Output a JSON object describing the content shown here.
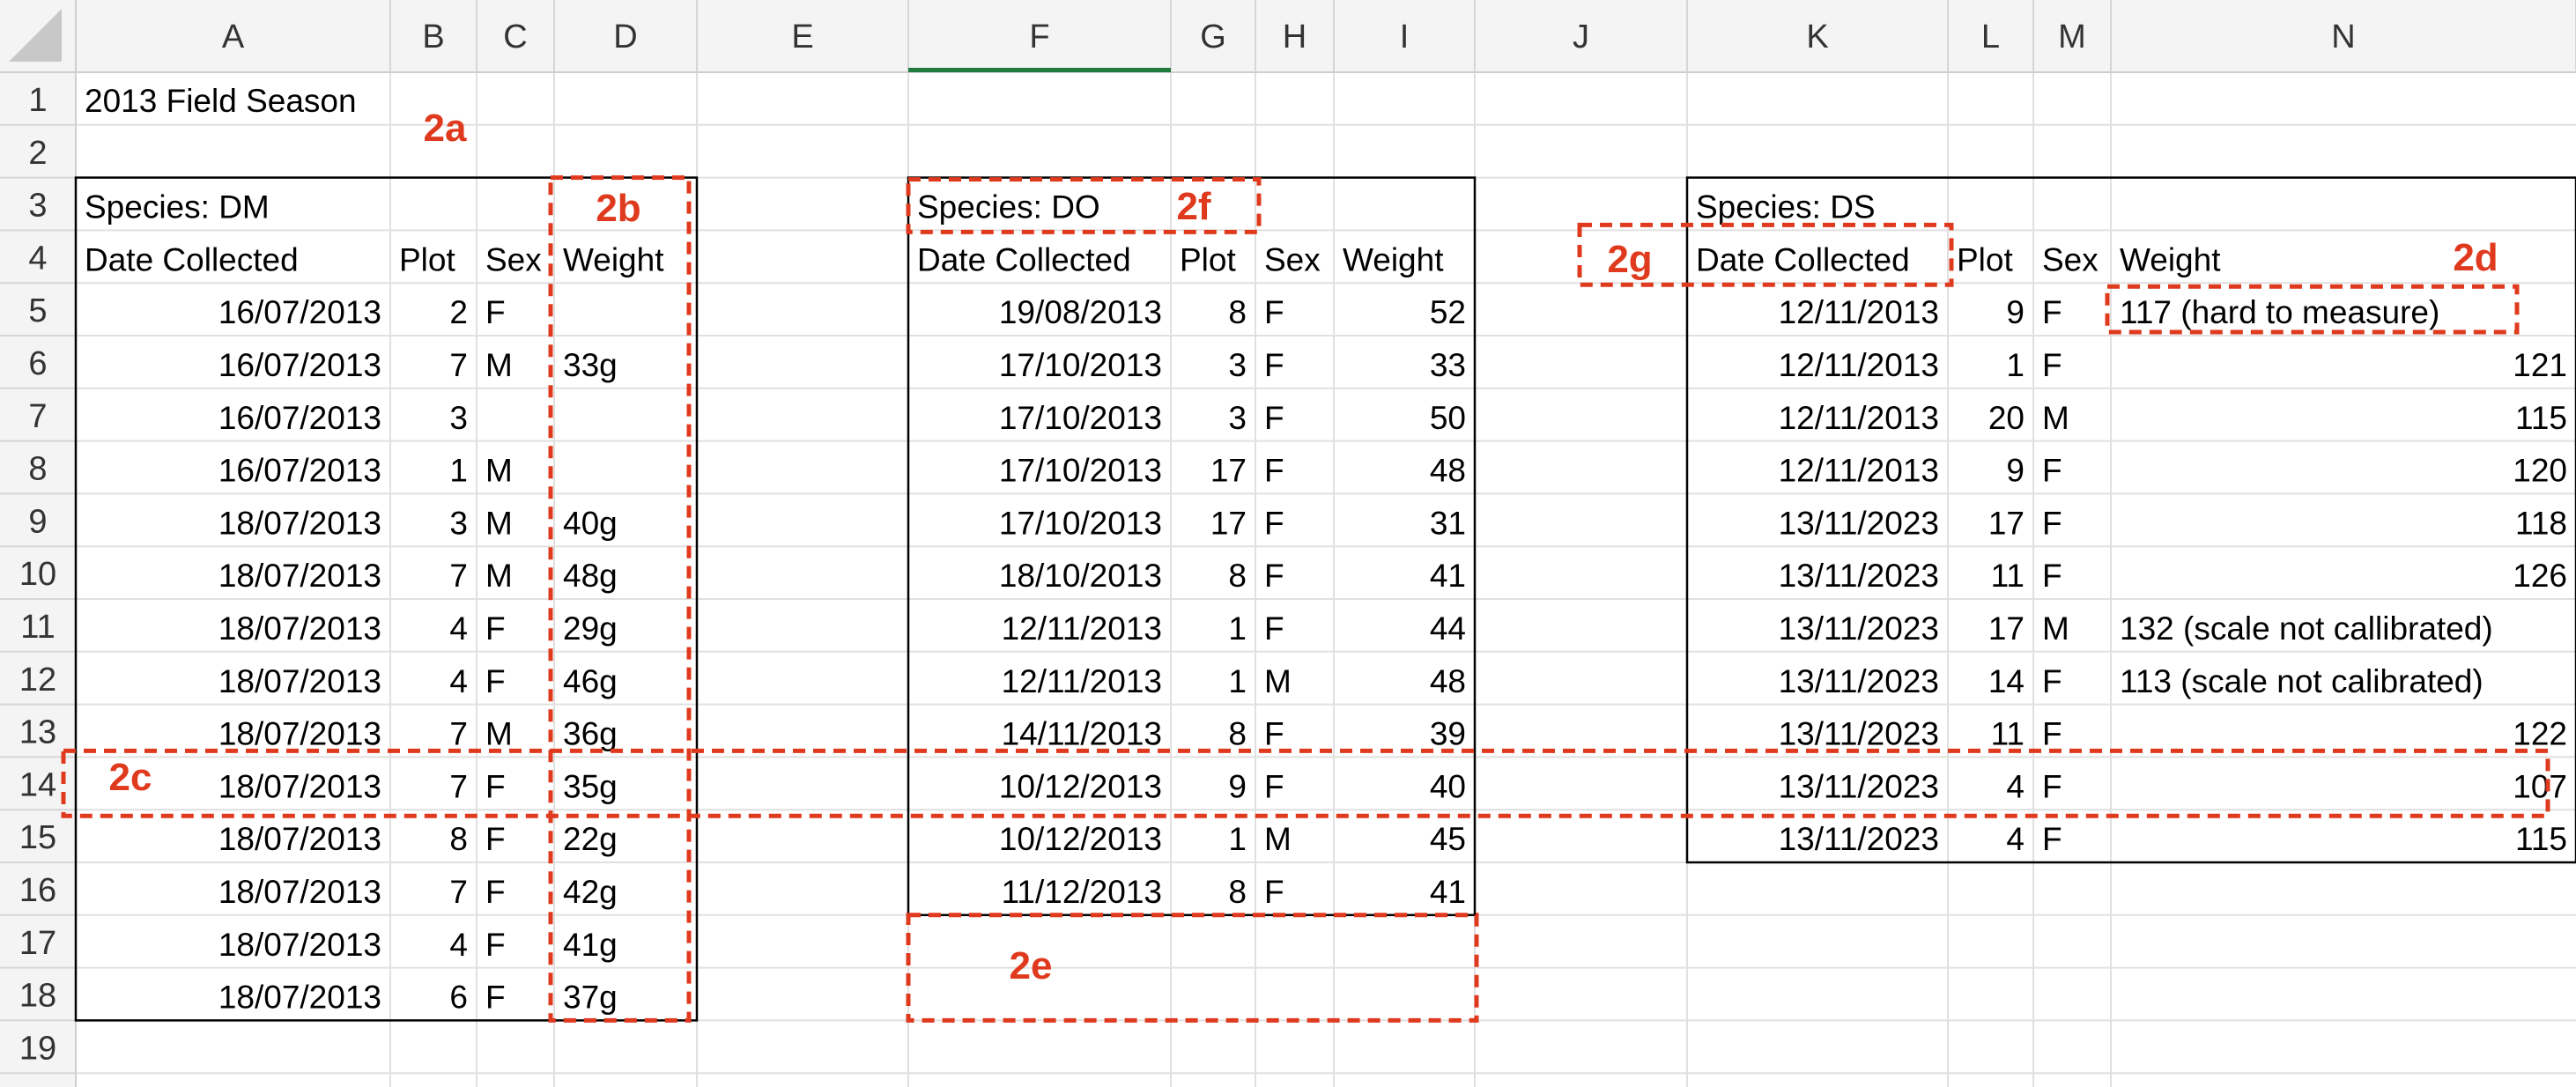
{
  "sheet": {
    "columns": [
      "A",
      "B",
      "C",
      "D",
      "E",
      "F",
      "G",
      "H",
      "I",
      "J",
      "K",
      "L",
      "M",
      "N"
    ],
    "rows": [
      1,
      2,
      3,
      4,
      5,
      6,
      7,
      8,
      9,
      10,
      11,
      12,
      13,
      14,
      15,
      16,
      17,
      18,
      19
    ],
    "selected_column": "F"
  },
  "title_cell": "2013 Field Season",
  "tables": [
    {
      "species_label": "Species: DM",
      "headers": [
        "Date Collected",
        "Plot",
        "Sex",
        "Weight"
      ],
      "rows": [
        [
          "16/07/2013",
          "2",
          "F",
          ""
        ],
        [
          "16/07/2013",
          "7",
          "M",
          "33g"
        ],
        [
          "16/07/2013",
          "3",
          "",
          ""
        ],
        [
          "16/07/2013",
          "1",
          "M",
          ""
        ],
        [
          "18/07/2013",
          "3",
          "M",
          "40g"
        ],
        [
          "18/07/2013",
          "7",
          "M",
          "48g"
        ],
        [
          "18/07/2013",
          "4",
          "F",
          "29g"
        ],
        [
          "18/07/2013",
          "4",
          "F",
          "46g"
        ],
        [
          "18/07/2013",
          "7",
          "M",
          "36g"
        ],
        [
          "18/07/2013",
          "7",
          "F",
          "35g"
        ],
        [
          "18/07/2013",
          "8",
          "F",
          "22g"
        ],
        [
          "18/07/2013",
          "7",
          "F",
          "42g"
        ],
        [
          "18/07/2013",
          "4",
          "F",
          "41g"
        ],
        [
          "18/07/2013",
          "6",
          "F",
          "37g"
        ]
      ]
    },
    {
      "species_label": "Species: DO",
      "headers": [
        "Date Collected",
        "Plot",
        "Sex",
        "Weight"
      ],
      "rows": [
        [
          "19/08/2013",
          "8",
          "F",
          "52"
        ],
        [
          "17/10/2013",
          "3",
          "F",
          "33"
        ],
        [
          "17/10/2013",
          "3",
          "F",
          "50"
        ],
        [
          "17/10/2013",
          "17",
          "F",
          "48"
        ],
        [
          "17/10/2013",
          "17",
          "F",
          "31"
        ],
        [
          "18/10/2013",
          "8",
          "F",
          "41"
        ],
        [
          "12/11/2013",
          "1",
          "F",
          "44"
        ],
        [
          "12/11/2013",
          "1",
          "M",
          "48"
        ],
        [
          "14/11/2013",
          "8",
          "F",
          "39"
        ],
        [
          "10/12/2013",
          "9",
          "F",
          "40"
        ],
        [
          "10/12/2013",
          "1",
          "M",
          "45"
        ],
        [
          "11/12/2013",
          "8",
          "F",
          "41"
        ]
      ]
    },
    {
      "species_label": "Species: DS",
      "headers": [
        "Date Collected",
        "Plot",
        "Sex",
        "Weight"
      ],
      "rows": [
        [
          "12/11/2013",
          "9",
          "F",
          "117 (hard to measure)"
        ],
        [
          "12/11/2013",
          "1",
          "F",
          "121"
        ],
        [
          "12/11/2013",
          "20",
          "M",
          "115"
        ],
        [
          "12/11/2013",
          "9",
          "F",
          "120"
        ],
        [
          "13/11/2023",
          "17",
          "F",
          "118"
        ],
        [
          "13/11/2023",
          "11",
          "F",
          "126"
        ],
        [
          "13/11/2023",
          "17",
          "M",
          "132 (scale not callibrated)"
        ],
        [
          "13/11/2023",
          "14",
          "F",
          "113 (scale not calibrated)"
        ],
        [
          "13/11/2023",
          "11",
          "F",
          "122"
        ],
        [
          "13/11/2023",
          "4",
          "F",
          "107"
        ],
        [
          "13/11/2023",
          "4",
          "F",
          "115"
        ]
      ]
    }
  ],
  "annotations": {
    "a2a": "2a",
    "a2b": "2b",
    "a2c": "2c",
    "a2d": "2d",
    "a2e": "2e",
    "a2f": "2f",
    "a2g": "2g",
    "color": "#e03a1e"
  },
  "colors": {
    "header_bg": "#f4f4f4",
    "grid": "#e0e0e0",
    "selected_col": "#1f7a3d"
  }
}
